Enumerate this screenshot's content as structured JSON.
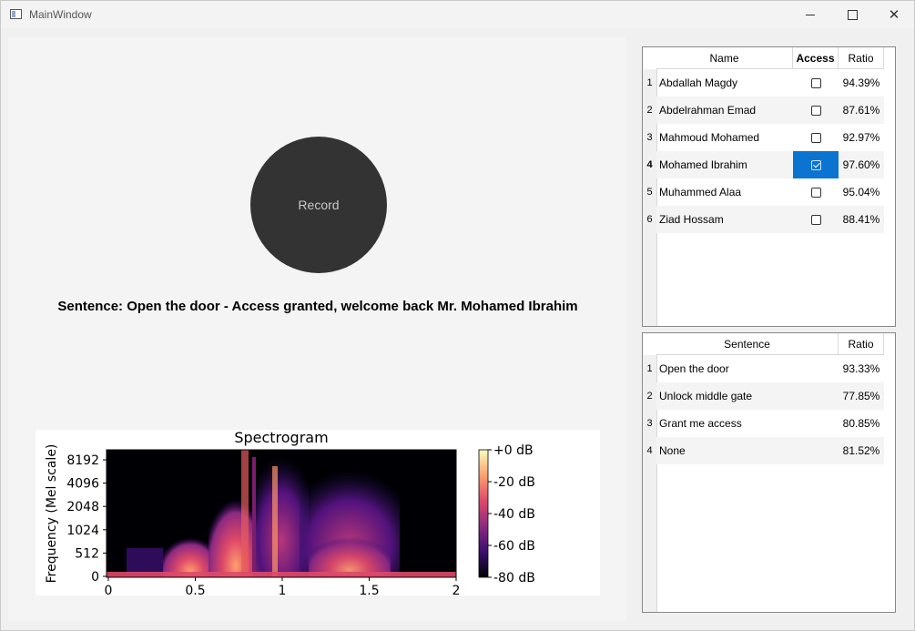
{
  "window": {
    "title": "MainWindow"
  },
  "record": {
    "label": "Record"
  },
  "sentence_text": "Sentence: Open the door - Access granted, welcome back Mr. Mohamed Ibrahim",
  "users_table": {
    "headers": [
      "Name",
      "Access",
      "Ratio"
    ],
    "rows": [
      {
        "num": "1",
        "name": "Abdallah Magdy",
        "access": false,
        "ratio": "94.39%"
      },
      {
        "num": "2",
        "name": "Abdelrahman Emad",
        "access": false,
        "ratio": "87.61%"
      },
      {
        "num": "3",
        "name": "Mahmoud Mohamed",
        "access": false,
        "ratio": "92.97%"
      },
      {
        "num": "4",
        "name": "Mohamed Ibrahim",
        "access": true,
        "ratio": "97.60%"
      },
      {
        "num": "5",
        "name": "Muhammed Alaa",
        "access": false,
        "ratio": "95.04%"
      },
      {
        "num": "6",
        "name": "Ziad Hossam",
        "access": false,
        "ratio": "88.41%"
      }
    ]
  },
  "sentences_table": {
    "headers": [
      "Sentence",
      "Ratio"
    ],
    "rows": [
      {
        "num": "1",
        "sentence": "Open the door",
        "ratio": "93.33%"
      },
      {
        "num": "2",
        "sentence": "Unlock middle gate",
        "ratio": "77.85%"
      },
      {
        "num": "3",
        "sentence": "Grant me access",
        "ratio": "80.85%"
      },
      {
        "num": "4",
        "sentence": "None",
        "ratio": "81.52%"
      }
    ]
  },
  "spectrogram": {
    "title": "Spectrogram",
    "ylabel": "Frequency (Mel scale)",
    "yticks": [
      "8192",
      "4096",
      "2048",
      "1024",
      "512",
      "0"
    ],
    "xticks": [
      "0",
      "0.5",
      "1",
      "1.5",
      "2"
    ],
    "colorbar_ticks": [
      "+0 dB",
      "-20 dB",
      "-40 dB",
      "-60 dB",
      "-80 dB"
    ],
    "colormap_colors": [
      "#000004",
      "#3b0f70",
      "#8c2981",
      "#de4968",
      "#fe9f6d",
      "#fcfdbf"
    ]
  }
}
